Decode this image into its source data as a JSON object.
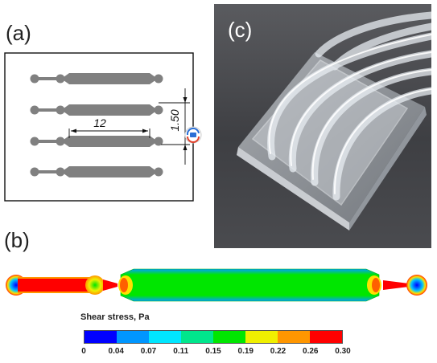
{
  "panels": {
    "a": "(a)",
    "b": "(b)",
    "c": "(c)"
  },
  "drawing": {
    "channel_length_label": "12",
    "channel_spacing_label": "1.50"
  },
  "legend": {
    "title": "Shear stress, Pa",
    "ticks": [
      "0",
      "0.04",
      "0.07",
      "0.11",
      "0.15",
      "0.19",
      "0.22",
      "0.26",
      "0.30"
    ],
    "colors": [
      "#0000ff",
      "#0096ff",
      "#00e6ff",
      "#00e68c",
      "#00e600",
      "#f0f000",
      "#ff9600",
      "#ff0000"
    ]
  },
  "colors": {
    "channel_gray": "#808080",
    "low": "#0000ff",
    "mid": "#00e600",
    "high": "#ff0000"
  }
}
